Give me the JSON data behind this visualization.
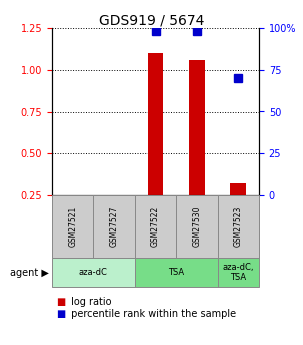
{
  "title": "GDS919 / 5674",
  "samples": [
    "GSM27521",
    "GSM27527",
    "GSM27522",
    "GSM27530",
    "GSM27523"
  ],
  "log_ratio": [
    null,
    null,
    1.1,
    1.06,
    0.32
  ],
  "percentile_rank": [
    null,
    null,
    98,
    98,
    70
  ],
  "bar_color": "#cc0000",
  "dot_color": "#0000cc",
  "ylim_left": [
    0.25,
    1.25
  ],
  "ylim_right": [
    0,
    100
  ],
  "yticks_left": [
    0.25,
    0.5,
    0.75,
    1.0,
    1.25
  ],
  "yticks_right": [
    0,
    25,
    50,
    75,
    100
  ],
  "sample_box_color": "#cccccc",
  "agent_group_light": "#bbf0cc",
  "agent_group_dark": "#77dd88",
  "bg_color": "#ffffff",
  "group_spans": [
    [
      0,
      2,
      "aza-dC"
    ],
    [
      2,
      4,
      "TSA"
    ],
    [
      4,
      5,
      "aza-dC,\nTSA"
    ]
  ]
}
